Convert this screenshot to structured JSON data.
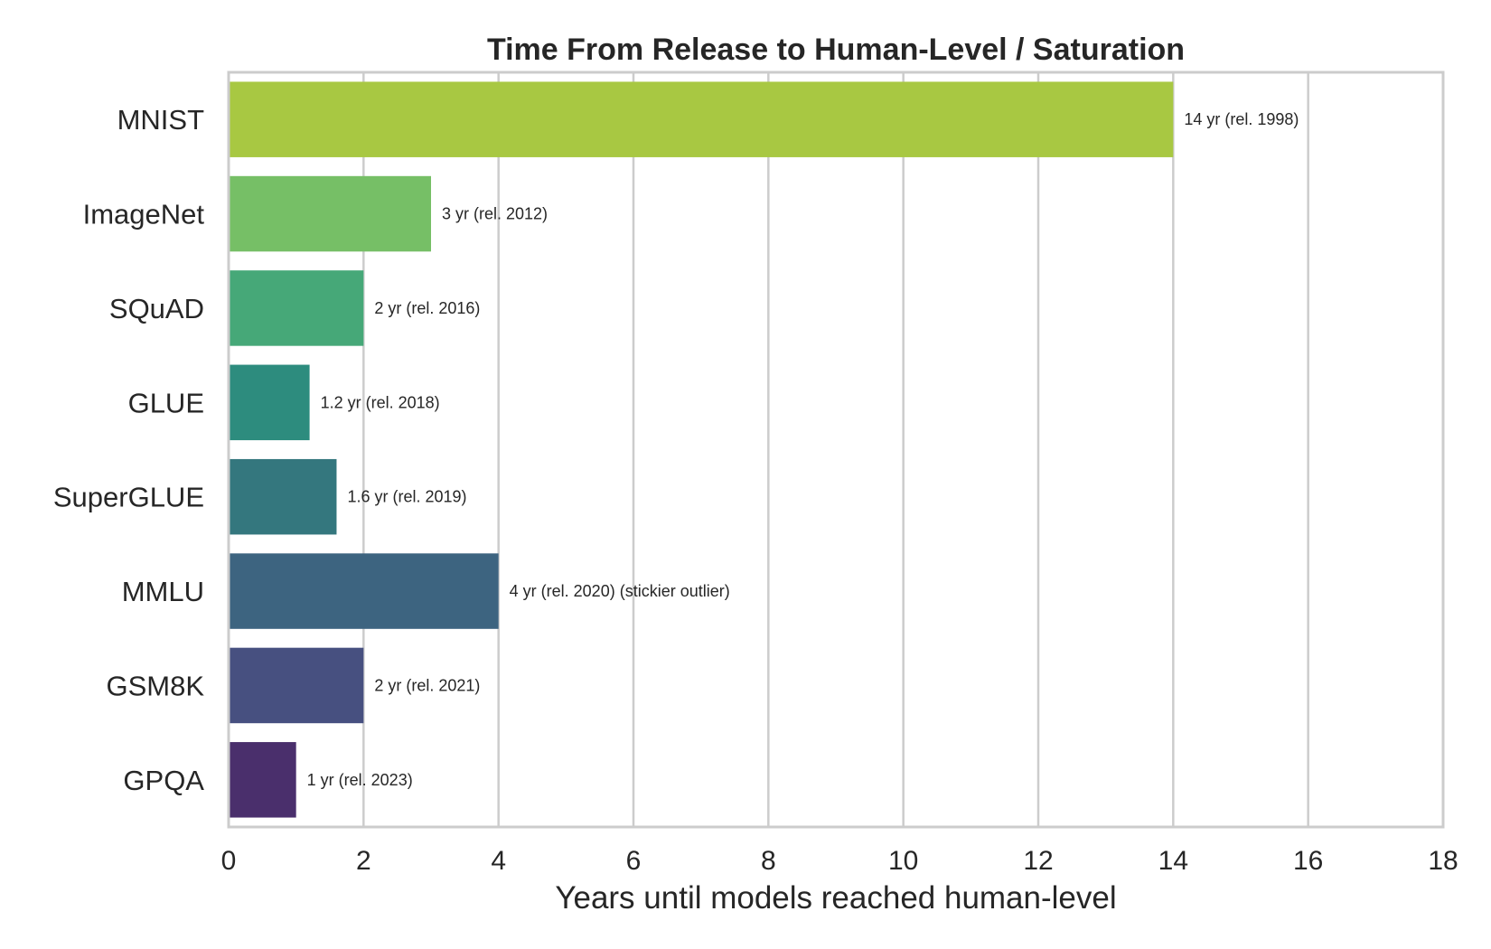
{
  "chart_data": {
    "type": "bar",
    "orientation": "horizontal",
    "title": "Time From Release to Human-Level / Saturation",
    "xlabel": "Years until models reached human-level",
    "ylabel": "",
    "xlim": [
      0,
      18
    ],
    "xticks": [
      0,
      2,
      4,
      6,
      8,
      10,
      12,
      14,
      16,
      18
    ],
    "grid": true,
    "categories": [
      "MNIST",
      "ImageNet",
      "SQuAD",
      "GLUE",
      "SuperGLUE",
      "MMLU",
      "GSM8K",
      "GPQA"
    ],
    "values": [
      14,
      3,
      2,
      1.2,
      1.6,
      4,
      2,
      1
    ],
    "release_years": [
      1998,
      2012,
      2016,
      2018,
      2019,
      2020,
      2021,
      2023
    ],
    "data_labels": [
      "14 yr  (rel. 1998)",
      "3 yr  (rel. 2012)",
      "2 yr  (rel. 2016)",
      "1.2 yr  (rel. 2018)",
      "1.6 yr  (rel. 2019)",
      "4 yr  (rel. 2020)  (stickier outlier)",
      "2 yr  (rel. 2021)",
      "1 yr  (rel. 2023)"
    ],
    "colors": [
      "#a8c842",
      "#76bf66",
      "#46a878",
      "#2d8c7e",
      "#34777e",
      "#3d6480",
      "#475080",
      "#4a2f6c"
    ]
  }
}
